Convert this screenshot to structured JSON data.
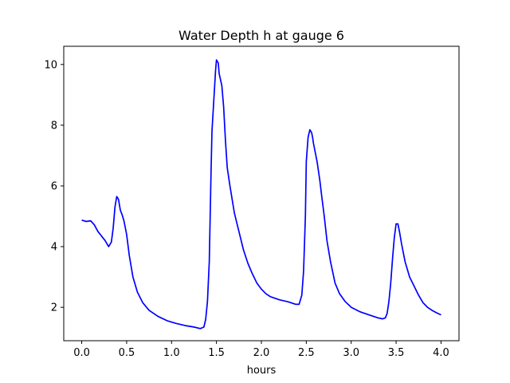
{
  "chart_data": {
    "type": "line",
    "title": "Water Depth h at gauge 6",
    "xlabel": "hours",
    "ylabel": "",
    "xlim": [
      -0.2,
      4.2
    ],
    "ylim": [
      0.9,
      10.6
    ],
    "xticks": [
      0.0,
      0.5,
      1.0,
      1.5,
      2.0,
      2.5,
      3.0,
      3.5,
      4.0
    ],
    "xtick_labels": [
      "0.0",
      "0.5",
      "1.0",
      "1.5",
      "2.0",
      "2.5",
      "3.0",
      "3.5",
      "4.0"
    ],
    "yticks": [
      2,
      4,
      6,
      8,
      10
    ],
    "ytick_labels": [
      "2",
      "4",
      "6",
      "8",
      "10"
    ],
    "grid": false,
    "line_color": "#0000ff",
    "series": [
      {
        "x": [
          0.0,
          0.05,
          0.1,
          0.14,
          0.18,
          0.22,
          0.26,
          0.3,
          0.33,
          0.35,
          0.37,
          0.39,
          0.41,
          0.43,
          0.45,
          0.47,
          0.5,
          0.53,
          0.57,
          0.62,
          0.68,
          0.75,
          0.85,
          0.95,
          1.05,
          1.15,
          1.25,
          1.32,
          1.36,
          1.38,
          1.4,
          1.42,
          1.43,
          1.44,
          1.45,
          1.47,
          1.49,
          1.5,
          1.52,
          1.53,
          1.56,
          1.58,
          1.6,
          1.62,
          1.65,
          1.7,
          1.75,
          1.8,
          1.85,
          1.9,
          1.95,
          2.0,
          2.05,
          2.1,
          2.2,
          2.3,
          2.38,
          2.42,
          2.45,
          2.47,
          2.49,
          2.5,
          2.52,
          2.54,
          2.56,
          2.57,
          2.58,
          2.6,
          2.62,
          2.65,
          2.67,
          2.7,
          2.73,
          2.77,
          2.82,
          2.87,
          2.93,
          3.0,
          3.1,
          3.2,
          3.3,
          3.35,
          3.38,
          3.4,
          3.42,
          3.44,
          3.46,
          3.48,
          3.5,
          3.52,
          3.54,
          3.56,
          3.58,
          3.6,
          3.65,
          3.7,
          3.75,
          3.8,
          3.85,
          3.9,
          3.95,
          4.0
        ],
        "y": [
          4.87,
          4.83,
          4.85,
          4.72,
          4.5,
          4.35,
          4.2,
          4.0,
          4.15,
          4.6,
          5.3,
          5.65,
          5.55,
          5.2,
          5.05,
          4.85,
          4.4,
          3.7,
          3.0,
          2.5,
          2.15,
          1.9,
          1.7,
          1.56,
          1.47,
          1.4,
          1.35,
          1.3,
          1.35,
          1.6,
          2.2,
          3.5,
          5.0,
          6.5,
          7.8,
          8.8,
          9.8,
          10.15,
          10.05,
          9.7,
          9.3,
          8.6,
          7.5,
          6.6,
          6.0,
          5.1,
          4.5,
          3.9,
          3.45,
          3.1,
          2.8,
          2.6,
          2.45,
          2.35,
          2.25,
          2.18,
          2.1,
          2.1,
          2.4,
          3.2,
          5.0,
          6.8,
          7.6,
          7.85,
          7.75,
          7.6,
          7.4,
          7.1,
          6.8,
          6.2,
          5.7,
          5.0,
          4.2,
          3.5,
          2.8,
          2.45,
          2.2,
          2.0,
          1.85,
          1.75,
          1.65,
          1.62,
          1.65,
          1.8,
          2.2,
          2.8,
          3.6,
          4.3,
          4.75,
          4.75,
          4.45,
          4.1,
          3.8,
          3.5,
          3.0,
          2.7,
          2.4,
          2.15,
          2.0,
          1.9,
          1.82,
          1.75
        ]
      }
    ]
  }
}
